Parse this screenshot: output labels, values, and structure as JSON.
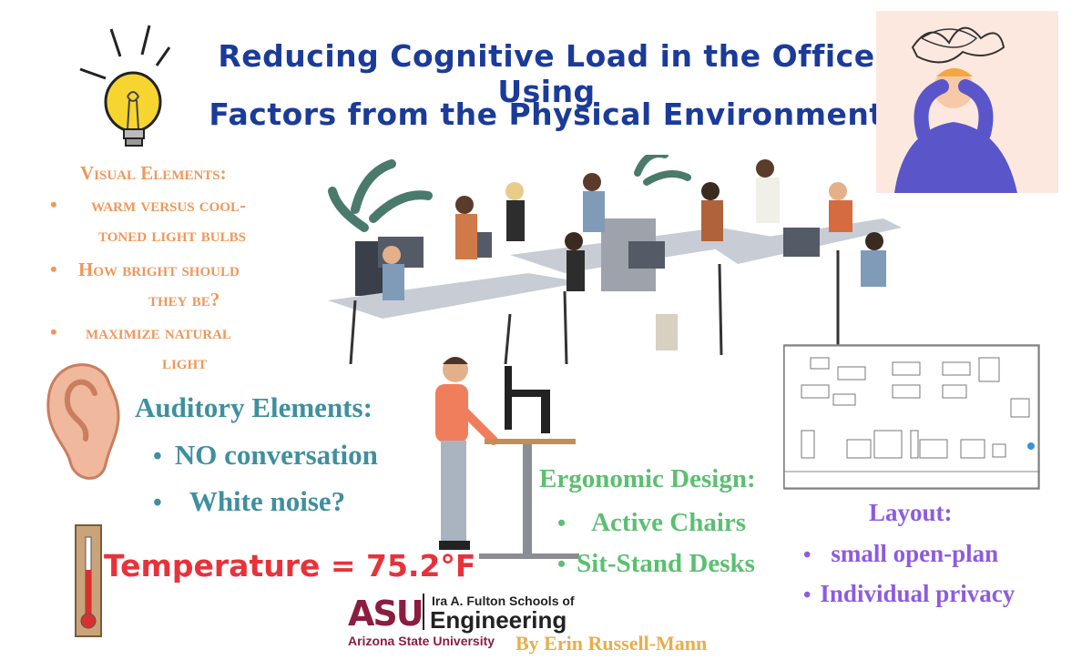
{
  "title_line1": "Reducing Cognitive Load in the Office Using",
  "title_line2": "Factors from the Physical Environment",
  "visual": {
    "heading": "Visual Elements:",
    "item1_line1": "warm versus cool-",
    "item1_line2": "toned light bulbs",
    "item2_line1": "How bright should",
    "item2_line2": "they be?",
    "item3_line1": "maximize natural",
    "item3_line2": "light"
  },
  "auditory": {
    "heading": "Auditory Elements:",
    "items": [
      "NO conversation",
      "White noise?"
    ]
  },
  "temperature": "Temperature = 75.2°F",
  "ergonomic": {
    "heading": "Ergonomic Design:",
    "items": [
      "Active Chairs",
      "Sit-Stand Desks"
    ]
  },
  "layout": {
    "heading": "Layout:",
    "items": [
      "small open-plan",
      "Individual privacy"
    ]
  },
  "logo": {
    "mark": "ASU",
    "school_line": "Ira A. Fulton Schools of",
    "engineering": "Engineering",
    "university": "Arizona State University"
  },
  "author": "By Erin Russell-Mann",
  "colors": {
    "title": "#1b3b9a",
    "visual": "#f0975a",
    "auditory": "#3f8f9f",
    "ergonomic": "#5cbf71",
    "layout": "#8d5be0",
    "temperature": "#e8323a",
    "asu_maroon": "#8c1d40"
  }
}
